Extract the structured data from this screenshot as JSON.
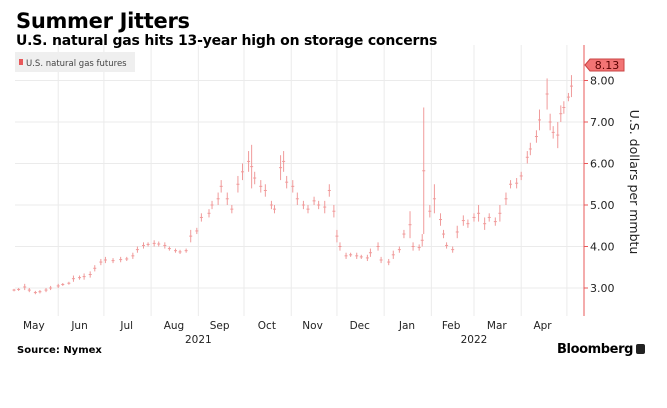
{
  "header": {
    "title": "Summer Jitters",
    "subtitle": "U.S. natural gas hits 13-year high on storage concerns"
  },
  "footer": {
    "source": "Source: Nymex",
    "brand": "Bloomberg"
  },
  "colors": {
    "series": "#f09a9a",
    "axis": "#e8585a",
    "badge": "#f27474",
    "grid": "#ebebeb",
    "legend_bg": "#efefef"
  },
  "chart_data": {
    "type": "bar",
    "style": "high-low range bars (daily)",
    "title": "Summer Jitters",
    "subtitle": "U.S. natural gas hits 13-year high on storage concerns",
    "legend": {
      "entries": [
        "U.S. natural gas futures"
      ],
      "placement": "top-left"
    },
    "ylabel": "U.S. dollars per mmbtu",
    "yaxis_side": "right",
    "ylim": [
      2.35,
      8.9
    ],
    "yticks": [
      "3.00",
      "4.00",
      "5.00",
      "6.00",
      "7.00",
      "8.00"
    ],
    "ytick_values": [
      3,
      4,
      5,
      6,
      7,
      8
    ],
    "xlim": [
      "2021-05-01",
      "2022-05-08"
    ],
    "xticks": [
      {
        "label": "May",
        "date": "2021-05-16"
      },
      {
        "label": "Jun",
        "date": "2021-06-15"
      },
      {
        "label": "Jul",
        "date": "2021-07-16"
      },
      {
        "label": "Aug",
        "date": "2021-08-16"
      },
      {
        "label": "Sep",
        "date": "2021-09-15"
      },
      {
        "label": "Oct",
        "date": "2021-10-16"
      },
      {
        "label": "Nov",
        "date": "2021-11-15"
      },
      {
        "label": "Dec",
        "date": "2021-12-16"
      },
      {
        "label": "Jan",
        "date": "2022-01-16"
      },
      {
        "label": "Feb",
        "date": "2022-02-14"
      },
      {
        "label": "Mar",
        "date": "2022-03-16"
      },
      {
        "label": "Apr",
        "date": "2022-04-15"
      }
    ],
    "year_labels": [
      {
        "label": "2021",
        "date": "2021-09-01"
      },
      {
        "label": "2022",
        "date": "2022-03-01"
      }
    ],
    "gridlines": {
      "x": "month starts",
      "y": "major ticks"
    },
    "last_value_label": "8.13",
    "last_value": 8.13,
    "series": [
      {
        "name": "U.S. natural gas futures",
        "fields": [
          "date",
          "low",
          "high"
        ],
        "values": [
          [
            "2021-05-03",
            2.92,
            2.98
          ],
          [
            "2021-05-06",
            2.93,
            3.0
          ],
          [
            "2021-05-10",
            2.95,
            3.1
          ],
          [
            "2021-05-13",
            2.9,
            3.0
          ],
          [
            "2021-05-17",
            2.85,
            2.93
          ],
          [
            "2021-05-20",
            2.87,
            2.95
          ],
          [
            "2021-05-24",
            2.9,
            3.0
          ],
          [
            "2021-05-27",
            2.95,
            3.05
          ],
          [
            "2021-06-01",
            3.0,
            3.1
          ],
          [
            "2021-06-04",
            3.05,
            3.12
          ],
          [
            "2021-06-08",
            3.08,
            3.15
          ],
          [
            "2021-06-11",
            3.15,
            3.3
          ],
          [
            "2021-06-15",
            3.2,
            3.3
          ],
          [
            "2021-06-18",
            3.2,
            3.35
          ],
          [
            "2021-06-22",
            3.25,
            3.4
          ],
          [
            "2021-06-25",
            3.4,
            3.55
          ],
          [
            "2021-06-29",
            3.55,
            3.7
          ],
          [
            "2021-07-02",
            3.6,
            3.75
          ],
          [
            "2021-07-07",
            3.6,
            3.72
          ],
          [
            "2021-07-12",
            3.62,
            3.75
          ],
          [
            "2021-07-16",
            3.65,
            3.75
          ],
          [
            "2021-07-20",
            3.7,
            3.85
          ],
          [
            "2021-07-23",
            3.85,
            4.0
          ],
          [
            "2021-07-27",
            3.95,
            4.1
          ],
          [
            "2021-07-30",
            4.0,
            4.1
          ],
          [
            "2021-08-03",
            4.0,
            4.15
          ],
          [
            "2021-08-06",
            4.0,
            4.12
          ],
          [
            "2021-08-10",
            3.95,
            4.1
          ],
          [
            "2021-08-13",
            3.9,
            4.0
          ],
          [
            "2021-08-17",
            3.85,
            3.95
          ],
          [
            "2021-08-20",
            3.82,
            3.92
          ],
          [
            "2021-08-24",
            3.85,
            3.95
          ],
          [
            "2021-08-27",
            4.1,
            4.4
          ],
          [
            "2021-08-31",
            4.3,
            4.45
          ],
          [
            "2021-09-03",
            4.6,
            4.8
          ],
          [
            "2021-09-08",
            4.7,
            4.9
          ],
          [
            "2021-09-10",
            4.9,
            5.1
          ],
          [
            "2021-09-14",
            5.0,
            5.3
          ],
          [
            "2021-09-16",
            5.3,
            5.6
          ],
          [
            "2021-09-20",
            5.0,
            5.3
          ],
          [
            "2021-09-23",
            4.8,
            5.0
          ],
          [
            "2021-09-27",
            5.3,
            5.7
          ],
          [
            "2021-09-30",
            5.6,
            6.0
          ],
          [
            "2021-10-04",
            5.8,
            6.3
          ],
          [
            "2021-10-06",
            5.4,
            6.45
          ],
          [
            "2021-10-08",
            5.5,
            5.8
          ],
          [
            "2021-10-12",
            5.3,
            5.6
          ],
          [
            "2021-10-15",
            5.2,
            5.5
          ],
          [
            "2021-10-19",
            4.9,
            5.1
          ],
          [
            "2021-10-21",
            4.8,
            5.0
          ],
          [
            "2021-10-25",
            5.6,
            6.2
          ],
          [
            "2021-10-27",
            5.8,
            6.3
          ],
          [
            "2021-10-29",
            5.4,
            5.7
          ],
          [
            "2021-11-02",
            5.3,
            5.6
          ],
          [
            "2021-11-05",
            5.0,
            5.3
          ],
          [
            "2021-11-09",
            4.9,
            5.1
          ],
          [
            "2021-11-12",
            4.8,
            5.0
          ],
          [
            "2021-11-16",
            5.0,
            5.2
          ],
          [
            "2021-11-19",
            4.9,
            5.1
          ],
          [
            "2021-11-23",
            4.8,
            5.1
          ],
          [
            "2021-11-26",
            5.2,
            5.5
          ],
          [
            "2021-11-29",
            4.7,
            5.0
          ],
          [
            "2021-12-01",
            4.1,
            4.4
          ],
          [
            "2021-12-03",
            3.9,
            4.1
          ],
          [
            "2021-12-07",
            3.7,
            3.85
          ],
          [
            "2021-12-10",
            3.75,
            3.85
          ],
          [
            "2021-12-14",
            3.7,
            3.85
          ],
          [
            "2021-12-17",
            3.7,
            3.8
          ],
          [
            "2021-12-21",
            3.65,
            3.8
          ],
          [
            "2021-12-23",
            3.75,
            3.95
          ],
          [
            "2021-12-28",
            3.9,
            4.1
          ],
          [
            "2021-12-30",
            3.6,
            3.75
          ],
          [
            "2022-01-04",
            3.55,
            3.7
          ],
          [
            "2022-01-07",
            3.7,
            3.9
          ],
          [
            "2022-01-11",
            3.85,
            4.0
          ],
          [
            "2022-01-14",
            4.2,
            4.4
          ],
          [
            "2022-01-18",
            4.2,
            4.85
          ],
          [
            "2022-01-20",
            3.9,
            4.1
          ],
          [
            "2022-01-24",
            3.9,
            4.05
          ],
          [
            "2022-01-26",
            4.0,
            4.3
          ],
          [
            "2022-01-27",
            4.3,
            7.35
          ],
          [
            "2022-01-31",
            4.7,
            5.0
          ],
          [
            "2022-02-03",
            4.8,
            5.5
          ],
          [
            "2022-02-07",
            4.5,
            4.8
          ],
          [
            "2022-02-09",
            4.2,
            4.4
          ],
          [
            "2022-02-11",
            3.95,
            4.1
          ],
          [
            "2022-02-15",
            3.85,
            4.0
          ],
          [
            "2022-02-18",
            4.2,
            4.5
          ],
          [
            "2022-02-22",
            4.5,
            4.75
          ],
          [
            "2022-02-25",
            4.45,
            4.65
          ],
          [
            "2022-03-01",
            4.6,
            4.8
          ],
          [
            "2022-03-04",
            4.6,
            5.0
          ],
          [
            "2022-03-08",
            4.4,
            4.7
          ],
          [
            "2022-03-11",
            4.6,
            4.8
          ],
          [
            "2022-03-15",
            4.5,
            4.7
          ],
          [
            "2022-03-18",
            4.6,
            5.0
          ],
          [
            "2022-03-22",
            5.0,
            5.3
          ],
          [
            "2022-03-25",
            5.4,
            5.6
          ],
          [
            "2022-03-29",
            5.4,
            5.65
          ],
          [
            "2022-04-01",
            5.6,
            5.8
          ],
          [
            "2022-04-05",
            6.0,
            6.3
          ],
          [
            "2022-04-07",
            6.2,
            6.5
          ],
          [
            "2022-04-11",
            6.5,
            6.8
          ],
          [
            "2022-04-13",
            6.8,
            7.3
          ],
          [
            "2022-04-18",
            7.3,
            8.05
          ],
          [
            "2022-04-20",
            6.8,
            7.2
          ],
          [
            "2022-04-22",
            6.6,
            6.9
          ],
          [
            "2022-04-25",
            6.37,
            7.0
          ],
          [
            "2022-04-27",
            7.0,
            7.4
          ],
          [
            "2022-04-29",
            7.2,
            7.5
          ],
          [
            "2022-05-02",
            7.5,
            7.7
          ],
          [
            "2022-05-04",
            7.6,
            8.13
          ]
        ]
      }
    ]
  }
}
